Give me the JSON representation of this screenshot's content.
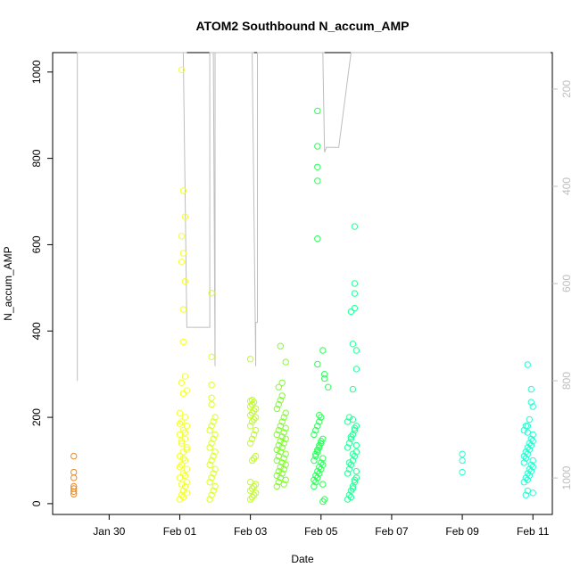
{
  "chart_data": {
    "type": "scatter",
    "title": "ATOM2 Southbound N_accum_AMP",
    "xlabel": "Date",
    "ylabel": "N_accum_AMP",
    "x_ticks": [
      {
        "label": "Jan 30",
        "day": 30
      },
      {
        "label": "Feb 01",
        "day": 32
      },
      {
        "label": "Feb 03",
        "day": 34
      },
      {
        "label": "Feb 05",
        "day": 36
      },
      {
        "label": "Feb 07",
        "day": 38
      },
      {
        "label": "Feb 09",
        "day": 40
      },
      {
        "label": "Feb 11",
        "day": 42
      }
    ],
    "xlim_days": [
      28.4,
      42.55
    ],
    "ylim": [
      -25,
      1045
    ],
    "y_ticks": [
      0,
      200,
      400,
      600,
      800,
      1000
    ],
    "y2_ticks": [
      200,
      400,
      600,
      800,
      1000
    ],
    "y2lim": [
      1075,
      125
    ],
    "y2_color": "#bebebe",
    "grid": false,
    "point_colors": [
      "#f08a1c",
      "#f2ff33",
      "#dcff22",
      "#bfff1a",
      "#7fff2a",
      "#2cff5a",
      "#2bff9a",
      "#22ffd0"
    ],
    "series": [
      {
        "color": "#f08a1c",
        "x": [
          29.0,
          29.0,
          29.0,
          29.0,
          29.0,
          29.0,
          29.0
        ],
        "y": [
          110,
          73,
          60,
          40,
          35,
          28,
          22
        ]
      },
      {
        "color": "#f2ff33",
        "x": [
          32.0,
          32.05,
          32.1,
          32.15,
          32.2,
          32.0,
          32.1,
          32.2,
          32.05,
          32.15,
          32.0,
          32.1,
          32.2,
          32.05,
          32.15,
          32.0,
          32.1,
          32.2,
          32.05,
          32.15,
          32.0,
          32.1,
          32.2,
          32.05,
          32.15,
          32.0,
          32.1,
          32.2,
          32.05,
          32.15,
          32.0,
          32.1,
          32.2,
          32.05,
          32.15,
          32.05,
          32.1,
          32.15,
          32.05,
          32.1,
          32.05,
          32.15,
          32.1,
          32.1
        ],
        "y": [
          10,
          20,
          30,
          40,
          50,
          60,
          70,
          80,
          90,
          100,
          110,
          120,
          130,
          140,
          150,
          160,
          170,
          180,
          190,
          200,
          210,
          15,
          25,
          45,
          65,
          85,
          105,
          125,
          145,
          165,
          185,
          255,
          262,
          280,
          295,
          1005,
          725,
          665,
          620,
          580,
          560,
          515,
          450,
          375
        ]
      },
      {
        "color": "#dcff22",
        "x": [
          32.85,
          32.9,
          32.95,
          33.0,
          32.85,
          32.9,
          32.95,
          33.0,
          32.85,
          32.9,
          32.95,
          33.0,
          32.85,
          32.9,
          32.95,
          33.0,
          32.85,
          32.9,
          32.95,
          33.0,
          32.9,
          32.9,
          32.9,
          32.9,
          32.9
        ],
        "y": [
          10,
          20,
          30,
          40,
          50,
          60,
          70,
          80,
          90,
          100,
          110,
          120,
          130,
          140,
          150,
          160,
          170,
          180,
          190,
          200,
          230,
          245,
          275,
          340,
          488
        ]
      },
      {
        "color": "#bfff1a",
        "x": [
          34.0,
          34.05,
          34.1,
          34.15,
          34.0,
          34.05,
          34.1,
          34.15,
          34.0,
          34.05,
          34.1,
          34.15,
          34.0,
          34.05,
          34.1,
          34.15,
          34.0,
          34.05,
          34.1,
          34.15,
          34.0,
          34.05,
          34.1,
          34.15,
          34.0,
          34.05,
          34.1,
          34.0,
          34.05,
          34.0
        ],
        "y": [
          10,
          15,
          20,
          25,
          30,
          35,
          40,
          45,
          50,
          100,
          105,
          110,
          140,
          150,
          160,
          170,
          180,
          190,
          195,
          200,
          205,
          210,
          215,
          220,
          225,
          230,
          235,
          238,
          240,
          335
        ]
      },
      {
        "color": "#7fff2a",
        "x": [
          34.75,
          34.8,
          34.85,
          34.9,
          34.95,
          35.0,
          34.75,
          34.8,
          34.85,
          34.9,
          34.95,
          35.0,
          34.75,
          34.8,
          34.85,
          34.9,
          34.95,
          35.0,
          34.75,
          34.8,
          34.85,
          34.9,
          34.95,
          35.0,
          34.75,
          34.8,
          34.85,
          34.9,
          34.95,
          35.0,
          34.75,
          34.8,
          34.85,
          34.9,
          34.95,
          35.0,
          34.8,
          34.9,
          34.85,
          35.0
        ],
        "y": [
          40,
          50,
          60,
          70,
          80,
          90,
          100,
          110,
          120,
          130,
          140,
          150,
          160,
          170,
          180,
          190,
          200,
          210,
          220,
          230,
          240,
          250,
          45,
          55,
          65,
          75,
          85,
          95,
          105,
          115,
          125,
          135,
          145,
          155,
          165,
          175,
          270,
          280,
          365,
          328
        ]
      },
      {
        "color": "#2cff5a",
        "x": [
          35.8,
          35.85,
          35.9,
          35.95,
          36.0,
          36.05,
          35.8,
          35.85,
          35.9,
          35.95,
          36.0,
          36.05,
          35.8,
          35.85,
          35.9,
          35.95,
          36.0,
          36.05,
          35.8,
          35.85,
          35.9,
          35.95,
          36.0,
          36.05,
          35.85,
          35.9,
          35.95,
          36.0,
          36.05,
          36.1,
          36.1,
          36.05,
          35.9,
          35.9,
          35.9,
          35.9,
          35.9,
          35.9,
          35.95,
          36.1,
          36.2
        ],
        "y": [
          40,
          50,
          60,
          70,
          80,
          90,
          100,
          110,
          120,
          130,
          140,
          150,
          160,
          170,
          180,
          190,
          200,
          45,
          55,
          65,
          75,
          85,
          95,
          105,
          115,
          125,
          135,
          145,
          5,
          10,
          290,
          355,
          910,
          828,
          780,
          748,
          614,
          323,
          205,
          300,
          270
        ]
      },
      {
        "color": "#2bff9a",
        "x": [
          36.75,
          36.8,
          36.85,
          36.9,
          36.95,
          37.0,
          36.75,
          36.8,
          36.85,
          36.9,
          36.95,
          37.0,
          36.75,
          36.8,
          36.85,
          36.9,
          36.95,
          37.0,
          36.75,
          36.8,
          36.85,
          36.9,
          36.95,
          37.0,
          36.8,
          36.9,
          37.0,
          36.85,
          36.95,
          36.9,
          37.0,
          36.95,
          36.95,
          36.95,
          36.95,
          36.9,
          37.0,
          36.85,
          36.9
        ],
        "y": [
          10,
          20,
          30,
          40,
          50,
          60,
          70,
          80,
          90,
          100,
          110,
          120,
          130,
          140,
          150,
          160,
          170,
          180,
          190,
          200,
          15,
          35,
          55,
          75,
          95,
          115,
          135,
          155,
          175,
          195,
          312,
          642,
          510,
          487,
          453,
          370,
          355,
          445,
          265
        ]
      },
      {
        "color": "#22ffd0",
        "x": [
          40.0,
          40.0,
          40.0,
          41.75,
          41.8,
          41.85,
          41.9,
          41.95,
          42.0,
          41.75,
          41.8,
          41.85,
          41.9,
          41.95,
          42.0,
          41.75,
          41.8,
          41.85,
          41.9,
          41.95,
          42.0,
          41.75,
          41.8,
          41.85,
          41.9,
          41.95,
          42.0,
          41.85,
          41.9,
          41.95,
          41.8,
          41.85,
          41.95,
          42.0,
          41.85,
          42.0,
          41.85
        ],
        "y": [
          115,
          100,
          73,
          50,
          60,
          70,
          80,
          90,
          100,
          110,
          120,
          130,
          140,
          150,
          160,
          170,
          180,
          55,
          65,
          75,
          85,
          95,
          105,
          115,
          125,
          135,
          145,
          165,
          195,
          265,
          20,
          30,
          235,
          225,
          180,
          25,
          322
        ]
      }
    ],
    "sub_series": {
      "color": "#bebebe",
      "note_axis": "right",
      "x": [
        29.1,
        29.1,
        29.15,
        29.2,
        29.3,
        29.5,
        30.0,
        31.0,
        31.95,
        32.0,
        32.05,
        32.0,
        32.1,
        32.15,
        32.05,
        32.2,
        32.1,
        32.2,
        32.85,
        32.85,
        32.9,
        32.95,
        33.0,
        32.95,
        33.0,
        33.0,
        33.0,
        33.4,
        34.0,
        34.0,
        34.05,
        34.1,
        34.05,
        34.15,
        34.15,
        34.2,
        34.2,
        35.0,
        34.75,
        34.75,
        34.8,
        34.85,
        34.9,
        34.85,
        34.95,
        35.0,
        35.0,
        35.5,
        36.0,
        36.0,
        36.05,
        36.1,
        36.05,
        36.1,
        36.15,
        36.15,
        36.5,
        36.85,
        36.85,
        36.9,
        36.95,
        36.95,
        37.0,
        37.0,
        37.2,
        37.2,
        41.0,
        41.0,
        41.3,
        41.0,
        41.2,
        41.2,
        41.9,
        41.9,
        41.95,
        42.0,
        42.0,
        42.5
      ],
      "y": [
        800,
        125,
        125,
        125,
        125,
        125,
        125,
        125,
        125,
        125,
        125,
        125,
        125,
        125,
        125,
        125,
        125,
        690,
        690,
        125,
        125,
        125,
        125,
        125,
        770,
        125,
        125,
        125,
        125,
        125,
        125,
        125,
        125,
        770,
        680,
        680,
        125,
        125,
        125,
        125,
        125,
        125,
        125,
        125,
        125,
        125,
        125,
        125,
        125,
        125,
        125,
        125,
        125,
        330,
        320,
        320,
        320,
        125,
        125,
        125,
        125,
        125,
        125,
        125,
        125,
        125,
        125,
        125,
        125,
        125,
        125,
        125,
        125,
        125,
        125,
        125,
        125,
        125
      ]
    }
  }
}
